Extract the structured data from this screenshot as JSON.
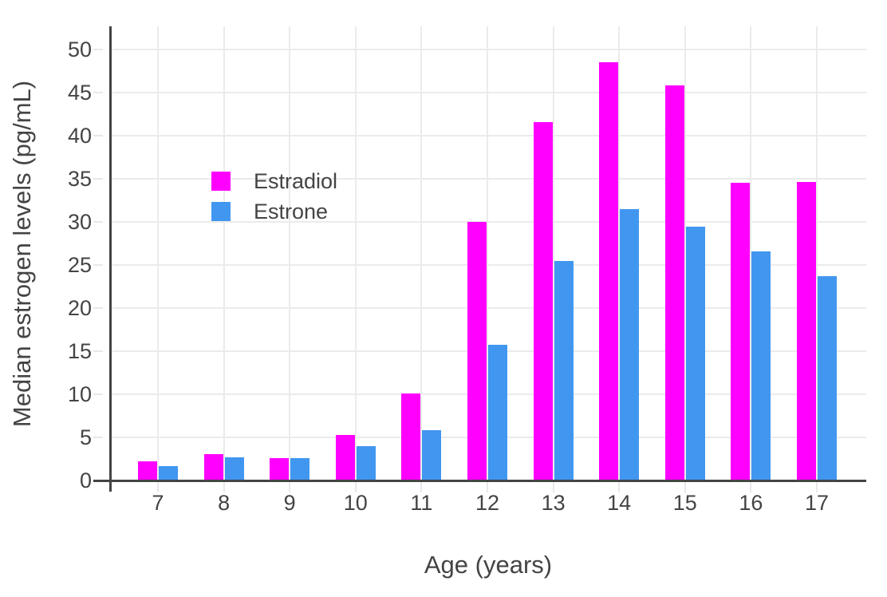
{
  "chart_data": {
    "type": "bar",
    "mode": "grouped",
    "title": "",
    "xlabel": "Age (years)",
    "ylabel": "Median estrogen levels (pg/mL)",
    "categories": [
      "7",
      "8",
      "9",
      "10",
      "11",
      "12",
      "13",
      "14",
      "15",
      "16",
      "17"
    ],
    "series": [
      {
        "name": "Estradiol",
        "color": "#FF00FF",
        "values": [
          2.2,
          3.1,
          2.6,
          5.3,
          10.1,
          30.0,
          41.6,
          48.5,
          45.8,
          34.5,
          34.6
        ]
      },
      {
        "name": "Estrone",
        "color": "#4197F0",
        "values": [
          1.7,
          2.7,
          2.6,
          4.0,
          5.8,
          15.7,
          25.5,
          31.5,
          29.4,
          26.6,
          23.7
        ]
      }
    ],
    "ylim": [
      0,
      52.7
    ],
    "yticks": [
      0,
      5,
      10,
      15,
      20,
      25,
      30,
      35,
      40,
      45,
      50
    ],
    "grid": true,
    "legend_position": "inside-top-left",
    "colors": {
      "background": "#FFFFFF",
      "grid": "#EBEBEB",
      "tick": "#E8E8E8",
      "axis_line": "#444444",
      "text": "#444444"
    }
  }
}
